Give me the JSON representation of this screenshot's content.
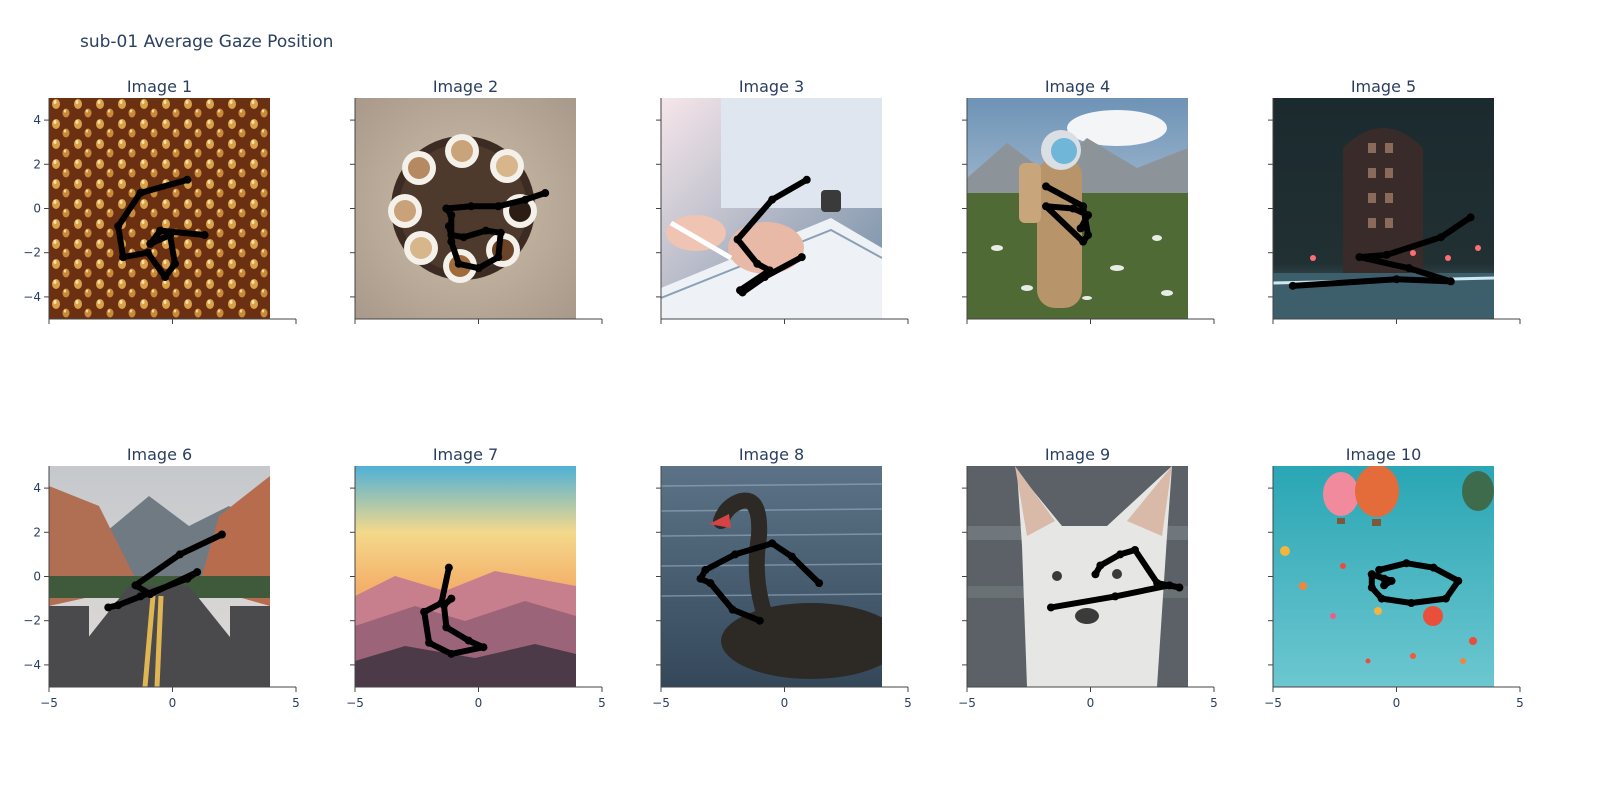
{
  "title": "sub-01 Average Gaze Position",
  "chart_data": [
    {
      "type": "line",
      "title": "Image 1",
      "image_content": "water-droplets",
      "xlim": [
        -5,
        5
      ],
      "ylim": [
        -5,
        5
      ],
      "x_ticks": [
        -5,
        0,
        5
      ],
      "y_ticks": [
        4,
        2,
        0,
        -2,
        -4
      ],
      "x": [
        0.6,
        -1.3,
        -2.2,
        -2.0,
        -1.0,
        -0.3,
        0.1,
        -0.1,
        -0.9,
        -0.5,
        1.3
      ],
      "y": [
        1.3,
        0.7,
        -0.8,
        -2.2,
        -2.0,
        -3.1,
        -2.5,
        -1.2,
        -1.6,
        -1.0,
        -1.2
      ]
    },
    {
      "type": "line",
      "title": "Image 2",
      "image_content": "coffee-cups",
      "xlim": [
        -5,
        5
      ],
      "ylim": [
        -5,
        5
      ],
      "x_ticks": [
        -5,
        0,
        5
      ],
      "y_ticks": [
        4,
        2,
        0,
        -2,
        -4
      ],
      "x": [
        2.7,
        1.9,
        0.8,
        -0.3,
        -1.3,
        -1.1,
        -1.1,
        -0.8,
        0.0,
        0.8,
        0.9,
        0.3,
        -0.6,
        -1.1,
        -1.2
      ],
      "y": [
        0.7,
        0.4,
        0.1,
        0.1,
        0.0,
        -0.3,
        -1.5,
        -2.5,
        -2.7,
        -2.2,
        -1.1,
        -1.0,
        -1.3,
        -1.2,
        -0.8
      ]
    },
    {
      "type": "line",
      "title": "Image 3",
      "image_content": "hands-signing-document",
      "xlim": [
        -5,
        5
      ],
      "ylim": [
        -5,
        5
      ],
      "x_ticks": [
        -5,
        0,
        5
      ],
      "y_ticks": [
        4,
        2,
        0,
        -2,
        -4
      ],
      "x": [
        0.9,
        -0.5,
        -1.9,
        -1.1,
        -0.6,
        -1.8,
        -1.7,
        -0.8,
        0.7
      ],
      "y": [
        1.3,
        0.4,
        -1.4,
        -2.5,
        -2.8,
        -3.7,
        -3.8,
        -3.1,
        -2.2
      ]
    },
    {
      "type": "line",
      "title": "Image 4",
      "image_content": "astronaut-in-meadow",
      "xlim": [
        -5,
        5
      ],
      "ylim": [
        -5,
        5
      ],
      "x_ticks": [
        -5,
        0,
        5
      ],
      "y_ticks": [
        4,
        2,
        0,
        -2,
        -4
      ],
      "x": [
        -1.8,
        -0.3,
        -0.1,
        -0.3,
        -1.8,
        -0.7,
        -0.1,
        -0.4
      ],
      "y": [
        1.0,
        0.1,
        -1.2,
        -1.5,
        0.1,
        0.0,
        -0.3,
        -0.9
      ]
    },
    {
      "type": "line",
      "title": "Image 5",
      "image_content": "building-at-night",
      "xlim": [
        -5,
        5
      ],
      "ylim": [
        -5,
        5
      ],
      "x_ticks": [
        -5,
        0,
        5
      ],
      "y_ticks": [
        4,
        2,
        0,
        -2,
        -4
      ],
      "x": [
        3.0,
        1.8,
        -0.4,
        -1.5,
        0.5,
        2.2,
        0.0,
        -4.2
      ],
      "y": [
        -0.4,
        -1.3,
        -2.1,
        -2.2,
        -2.7,
        -3.3,
        -3.2,
        -3.5
      ]
    },
    {
      "type": "line",
      "title": "Image 6",
      "image_content": "desert-road",
      "xlim": [
        -5,
        5
      ],
      "ylim": [
        -5,
        5
      ],
      "x_ticks": [
        -5,
        0,
        5
      ],
      "y_ticks": [
        4,
        2,
        0,
        -2,
        -4
      ],
      "x": [
        2.0,
        0.3,
        -1.5,
        -0.9,
        1.0,
        0.6,
        -1.3,
        -2.2,
        -2.6
      ],
      "y": [
        1.9,
        1.0,
        -0.4,
        -0.8,
        0.2,
        -0.1,
        -0.9,
        -1.3,
        -1.4
      ]
    },
    {
      "type": "line",
      "title": "Image 7",
      "image_content": "mountain-sunset",
      "xlim": [
        -5,
        5
      ],
      "ylim": [
        -5,
        5
      ],
      "x_ticks": [
        -5,
        0,
        5
      ],
      "y_ticks": [
        4,
        2,
        0,
        -2,
        -4
      ],
      "x": [
        -1.2,
        -1.5,
        -2.2,
        -2.0,
        -1.1,
        0.2,
        -0.4,
        -1.3,
        -1.4,
        -1.1
      ],
      "y": [
        0.4,
        -1.2,
        -1.6,
        -3.0,
        -3.5,
        -3.2,
        -2.9,
        -2.3,
        -1.3,
        -1.0
      ]
    },
    {
      "type": "line",
      "title": "Image 8",
      "image_content": "black-swan",
      "xlim": [
        -5,
        5
      ],
      "ylim": [
        -5,
        5
      ],
      "x_ticks": [
        -5,
        0,
        5
      ],
      "y_ticks": [
        4,
        2,
        0,
        -2,
        -4
      ],
      "x": [
        1.4,
        0.3,
        -0.5,
        -2.0,
        -3.2,
        -3.4,
        -3.0,
        -2.1,
        -1.0
      ],
      "y": [
        -0.3,
        0.9,
        1.5,
        1.0,
        0.3,
        -0.1,
        -0.3,
        -1.5,
        -2.0
      ]
    },
    {
      "type": "line",
      "title": "Image 9",
      "image_content": "white-dog",
      "xlim": [
        -5,
        5
      ],
      "ylim": [
        -5,
        5
      ],
      "x_ticks": [
        -5,
        0,
        5
      ],
      "y_ticks": [
        4,
        2,
        0,
        -2,
        -4
      ],
      "x": [
        0.2,
        0.4,
        1.2,
        1.8,
        2.7,
        3.6,
        3.2,
        1.0,
        -1.6
      ],
      "y": [
        0.1,
        0.5,
        1.0,
        1.2,
        -0.3,
        -0.5,
        -0.4,
        -0.9,
        -1.4
      ]
    },
    {
      "type": "line",
      "title": "Image 10",
      "image_content": "hot-air-balloons",
      "xlim": [
        -5,
        5
      ],
      "ylim": [
        -5,
        5
      ],
      "x_ticks": [
        -5,
        0,
        5
      ],
      "y_ticks": [
        4,
        2,
        0,
        -2,
        -4
      ],
      "x": [
        -0.7,
        0.4,
        1.5,
        2.5,
        2.0,
        0.6,
        -0.6,
        -1.0,
        -1.0,
        -0.5,
        -1.0,
        -0.2,
        -0.5
      ],
      "y": [
        0.3,
        0.6,
        0.4,
        -0.2,
        -1.0,
        -1.2,
        -1.0,
        -0.5,
        0.1,
        -0.1,
        0.1,
        -0.2,
        -0.4
      ]
    }
  ]
}
